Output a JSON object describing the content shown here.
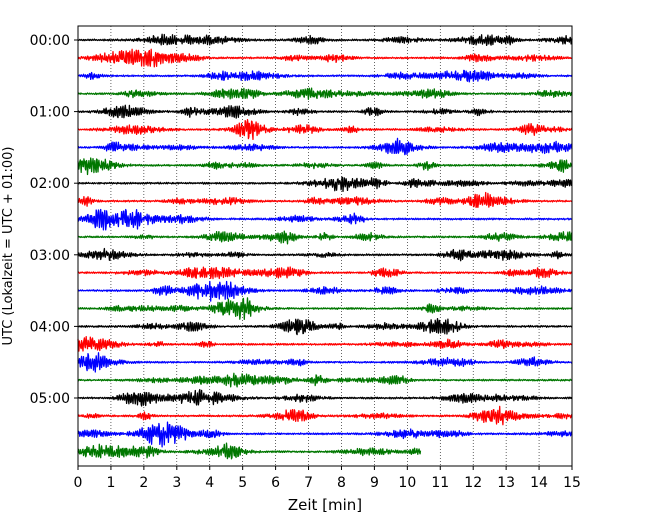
{
  "chart_data": {
    "type": "line",
    "title": "",
    "xlabel": "Zeit  [min]",
    "ylabel": "UTC (Lokalzeit = UTC + 01:00)",
    "xlim": [
      0,
      15
    ],
    "x_ticks": [
      "0",
      "1",
      "2",
      "3",
      "4",
      "5",
      "6",
      "7",
      "8",
      "9",
      "10",
      "11",
      "12",
      "13",
      "14",
      "15"
    ],
    "y_ticks": [
      "00:00",
      "01:00",
      "02:00",
      "03:00",
      "04:00",
      "05:00"
    ],
    "grid": "vertical dotted lines at each minute",
    "trace_interval_minutes": 15,
    "trace_count": 24,
    "trace_color_cycle": [
      "#000000",
      "#ff0000",
      "#0000ff",
      "#007700"
    ],
    "last_trace_end_minute": 10.4,
    "series": [
      {
        "start": "00:00",
        "color": "#000000"
      },
      {
        "start": "00:15",
        "color": "#ff0000"
      },
      {
        "start": "00:30",
        "color": "#0000ff"
      },
      {
        "start": "00:45",
        "color": "#007700"
      },
      {
        "start": "01:00",
        "color": "#000000"
      },
      {
        "start": "01:15",
        "color": "#ff0000"
      },
      {
        "start": "01:30",
        "color": "#0000ff"
      },
      {
        "start": "01:45",
        "color": "#007700"
      },
      {
        "start": "02:00",
        "color": "#000000"
      },
      {
        "start": "02:15",
        "color": "#ff0000"
      },
      {
        "start": "02:30",
        "color": "#0000ff"
      },
      {
        "start": "02:45",
        "color": "#007700"
      },
      {
        "start": "03:00",
        "color": "#000000"
      },
      {
        "start": "03:15",
        "color": "#ff0000"
      },
      {
        "start": "03:30",
        "color": "#0000ff"
      },
      {
        "start": "03:45",
        "color": "#007700"
      },
      {
        "start": "04:00",
        "color": "#000000"
      },
      {
        "start": "04:15",
        "color": "#ff0000"
      },
      {
        "start": "04:30",
        "color": "#0000ff"
      },
      {
        "start": "04:45",
        "color": "#007700"
      },
      {
        "start": "05:00",
        "color": "#000000"
      },
      {
        "start": "05:15",
        "color": "#ff0000"
      },
      {
        "start": "05:30",
        "color": "#0000ff"
      },
      {
        "start": "05:45",
        "color": "#007700"
      }
    ]
  }
}
